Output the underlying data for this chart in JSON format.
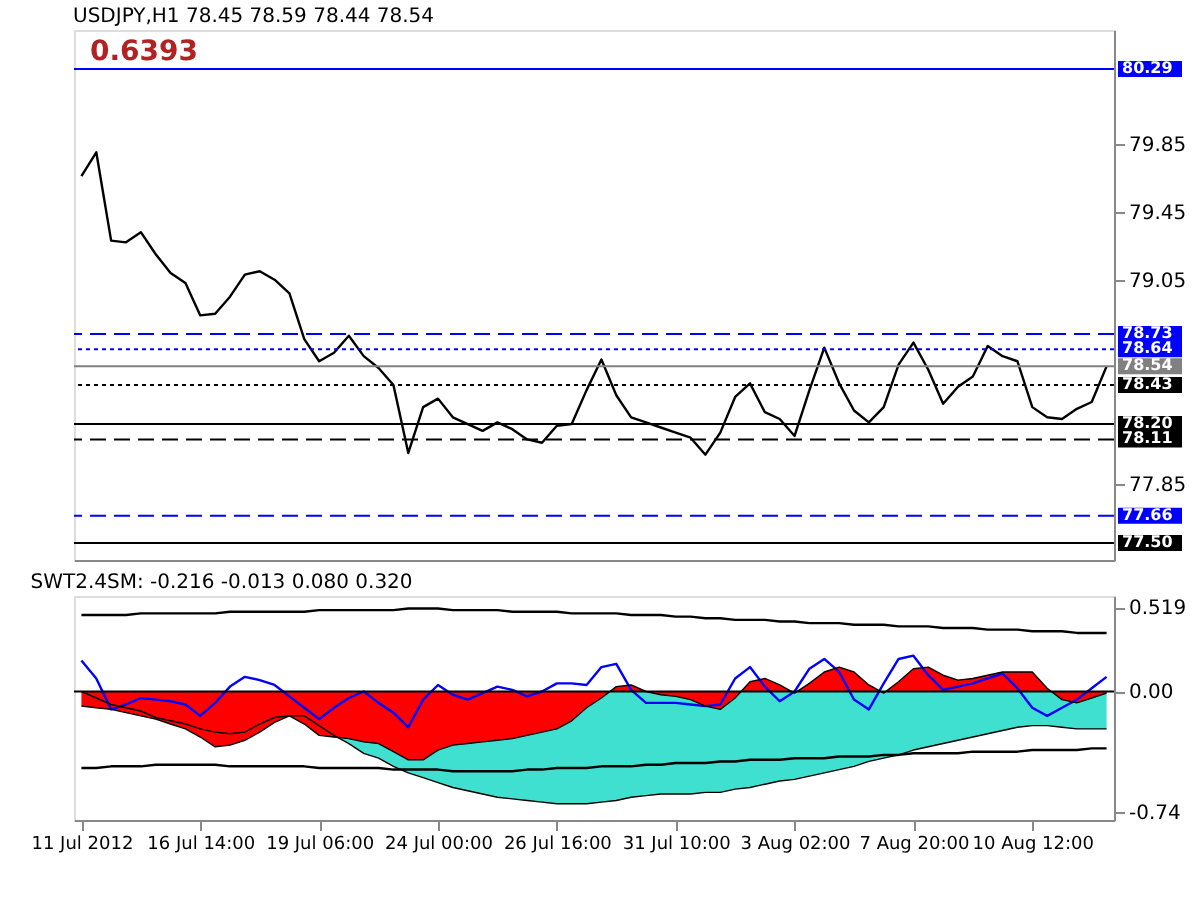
{
  "chart_data": [
    {
      "type": "line",
      "title": "USDJPY,H1  78.45 78.59 78.44 78.54",
      "annotations": [
        "0.6393"
      ],
      "categories": [
        null,
        null,
        null,
        null,
        null,
        null,
        null,
        null,
        null,
        null,
        null,
        null,
        null,
        null,
        null,
        null,
        null,
        null,
        null,
        null,
        null,
        null,
        null,
        null,
        null,
        null,
        null,
        null,
        null,
        null,
        null,
        null,
        null,
        null,
        null,
        null,
        null,
        null,
        null,
        null,
        null,
        null,
        null,
        null,
        null,
        null,
        null,
        null,
        null,
        null,
        null,
        null,
        null,
        null,
        null,
        null,
        null,
        null,
        null,
        null,
        null,
        null,
        null,
        null,
        null,
        null,
        null,
        null,
        null,
        null
      ],
      "series": [
        {
          "color": "#000000",
          "values": [
            79.66,
            79.8,
            79.28,
            79.27,
            79.33,
            79.2,
            79.09,
            79.03,
            78.84,
            78.85,
            78.95,
            79.08,
            79.1,
            79.05,
            78.97,
            78.7,
            78.57,
            78.62,
            78.72,
            78.6,
            78.53,
            78.43,
            78.03,
            78.3,
            78.35,
            78.24,
            78.2,
            78.16,
            78.21,
            78.17,
            78.11,
            78.09,
            78.19,
            78.2,
            78.4,
            78.58,
            78.37,
            78.24,
            78.21,
            78.18,
            78.15,
            78.12,
            78.02,
            78.15,
            78.36,
            78.44,
            78.27,
            78.23,
            78.13,
            78.4,
            78.65,
            78.44,
            78.28,
            78.21,
            78.3,
            78.55,
            78.68,
            78.52,
            78.32,
            78.42,
            78.48,
            78.66,
            78.6,
            78.57,
            78.3,
            78.24,
            78.23,
            78.29,
            78.33,
            78.54
          ]
        }
      ],
      "ref_lines": [
        {
          "axis": "y",
          "value": 80.29,
          "label": "80.29",
          "color": "#0000ff",
          "line_style": "solid"
        },
        {
          "axis": "y",
          "value": 78.73,
          "label": "78.73",
          "color": "#0000ff",
          "line_style": "dashed"
        },
        {
          "axis": "y",
          "value": 78.64,
          "label": "78.64",
          "color": "#0000ff",
          "line_style": "dotted"
        },
        {
          "axis": "y",
          "value": 78.54,
          "label": "78.54",
          "color": "#808080",
          "line_style": "solid"
        },
        {
          "axis": "y",
          "value": 78.43,
          "label": "78.43",
          "color": "#000000",
          "line_style": "dotted"
        },
        {
          "axis": "y",
          "value": 78.2,
          "label": "78.20",
          "color": "#000000",
          "line_style": "solid"
        },
        {
          "axis": "y",
          "value": 78.11,
          "label": "78.11",
          "color": "#000000",
          "line_style": "dashed"
        },
        {
          "axis": "y",
          "value": 77.66,
          "label": "77.66",
          "color": "#0000ff",
          "line_style": "dashed"
        },
        {
          "axis": "y",
          "value": 77.5,
          "label": "77.50",
          "color": "#000000",
          "line_style": "solid"
        }
      ],
      "ylim": [
        77.4,
        80.52
      ],
      "yticks": [
        77.85,
        79.05,
        79.45,
        79.85
      ],
      "tick_labels": "y"
    },
    {
      "type": "area",
      "title": "SWT2.4SM:  -0.216 -0.013 0.080 0.320",
      "categories": [
        "11 Jul 2012",
        null,
        null,
        null,
        null,
        null,
        null,
        null,
        "16 Jul 14:00",
        null,
        null,
        null,
        null,
        null,
        null,
        null,
        "19 Jul 06:00",
        null,
        null,
        null,
        null,
        null,
        null,
        null,
        "24 Jul 00:00",
        null,
        null,
        null,
        null,
        null,
        null,
        null,
        "26 Jul 16:00",
        null,
        null,
        null,
        null,
        null,
        null,
        null,
        "31 Jul 10:00",
        null,
        null,
        null,
        null,
        null,
        null,
        null,
        "3 Aug 02:00",
        null,
        null,
        null,
        null,
        null,
        null,
        null,
        "7 Aug 20:00",
        null,
        null,
        null,
        null,
        null,
        null,
        null,
        "10 Aug 12:00",
        null,
        null,
        null,
        null,
        null
      ],
      "series": [
        {
          "type": "area",
          "color": "#40e0d0",
          "values": [
            0,
            -0.04,
            -0.08,
            -0.1,
            -0.12,
            -0.16,
            -0.18,
            -0.2,
            -0.23,
            -0.25,
            -0.26,
            -0.25,
            -0.2,
            -0.16,
            -0.15,
            -0.15,
            -0.21,
            -0.27,
            -0.32,
            -0.38,
            -0.41,
            -0.46,
            -0.5,
            -0.53,
            -0.56,
            -0.59,
            -0.61,
            -0.63,
            -0.65,
            -0.66,
            -0.67,
            -0.68,
            -0.69,
            -0.69,
            -0.69,
            -0.68,
            -0.67,
            -0.65,
            -0.64,
            -0.63,
            -0.63,
            -0.63,
            -0.62,
            -0.62,
            -0.6,
            -0.59,
            -0.57,
            -0.55,
            -0.54,
            -0.52,
            -0.5,
            -0.48,
            -0.46,
            -0.43,
            -0.41,
            -0.39,
            -0.36,
            -0.34,
            -0.32,
            -0.3,
            -0.28,
            -0.26,
            -0.24,
            -0.22,
            -0.21,
            -0.21,
            -0.22,
            -0.23,
            -0.23,
            -0.23
          ]
        },
        {
          "type": "area",
          "color": "#ff0000",
          "values": [
            -0.09,
            -0.1,
            -0.11,
            -0.13,
            -0.15,
            -0.17,
            -0.2,
            -0.23,
            -0.28,
            -0.34,
            -0.33,
            -0.3,
            -0.25,
            -0.19,
            -0.15,
            -0.2,
            -0.27,
            -0.28,
            -0.29,
            -0.31,
            -0.32,
            -0.37,
            -0.42,
            -0.42,
            -0.36,
            -0.33,
            -0.32,
            -0.31,
            -0.3,
            -0.29,
            -0.27,
            -0.25,
            -0.23,
            -0.18,
            -0.1,
            -0.04,
            0.03,
            0.04,
            0,
            -0.02,
            -0.03,
            -0.05,
            -0.09,
            -0.11,
            -0.04,
            0.06,
            0.08,
            0.04,
            -0.01,
            0.05,
            0.12,
            0.15,
            0.12,
            0.04,
            -0.01,
            0.06,
            0.14,
            0.15,
            0.1,
            0.07,
            0.08,
            0.1,
            0.12,
            0.12,
            0.12,
            0.02,
            -0.05,
            -0.07,
            -0.04,
            -0.01
          ]
        },
        {
          "type": "line",
          "color": "#0000ff",
          "values": [
            0.19,
            0.08,
            -0.11,
            -0.08,
            -0.04,
            -0.05,
            -0.06,
            -0.08,
            -0.15,
            -0.07,
            0.03,
            0.09,
            0.07,
            0.04,
            -0.03,
            -0.1,
            -0.17,
            -0.1,
            -0.04,
            0,
            -0.07,
            -0.13,
            -0.22,
            -0.05,
            0.04,
            -0.02,
            -0.05,
            -0.01,
            0.03,
            0.01,
            -0.03,
            0,
            0.05,
            0.05,
            0.04,
            0.15,
            0.17,
            0.01,
            -0.07,
            -0.07,
            -0.07,
            -0.08,
            -0.09,
            -0.08,
            0.08,
            0.15,
            0.03,
            -0.06,
            0,
            0.14,
            0.2,
            0.12,
            -0.05,
            -0.11,
            0.05,
            0.2,
            0.22,
            0.1,
            0.01,
            0.03,
            0.05,
            0.08,
            0.11,
            0.02,
            -0.1,
            -0.15,
            -0.1,
            -0.05,
            0.02,
            0.09
          ]
        },
        {
          "type": "line",
          "color": "#000000",
          "values": [
            0.47,
            0.47,
            0.47,
            0.47,
            0.48,
            0.48,
            0.48,
            0.48,
            0.48,
            0.48,
            0.49,
            0.49,
            0.49,
            0.49,
            0.49,
            0.49,
            0.5,
            0.5,
            0.5,
            0.5,
            0.5,
            0.5,
            0.51,
            0.51,
            0.51,
            0.5,
            0.5,
            0.5,
            0.5,
            0.49,
            0.49,
            0.49,
            0.49,
            0.48,
            0.48,
            0.48,
            0.48,
            0.47,
            0.47,
            0.47,
            0.46,
            0.46,
            0.45,
            0.45,
            0.44,
            0.44,
            0.44,
            0.43,
            0.43,
            0.42,
            0.42,
            0.42,
            0.41,
            0.41,
            0.41,
            0.4,
            0.4,
            0.4,
            0.39,
            0.39,
            0.39,
            0.38,
            0.38,
            0.38,
            0.37,
            0.37,
            0.37,
            0.36,
            0.36,
            0.36
          ]
        },
        {
          "type": "line",
          "color": "#000000",
          "values": [
            -0.47,
            -0.47,
            -0.46,
            -0.46,
            -0.46,
            -0.45,
            -0.45,
            -0.45,
            -0.45,
            -0.45,
            -0.46,
            -0.46,
            -0.46,
            -0.46,
            -0.46,
            -0.46,
            -0.47,
            -0.47,
            -0.47,
            -0.47,
            -0.47,
            -0.48,
            -0.48,
            -0.48,
            -0.48,
            -0.49,
            -0.49,
            -0.49,
            -0.49,
            -0.49,
            -0.48,
            -0.48,
            -0.47,
            -0.47,
            -0.47,
            -0.46,
            -0.46,
            -0.46,
            -0.45,
            -0.45,
            -0.44,
            -0.44,
            -0.44,
            -0.43,
            -0.43,
            -0.42,
            -0.42,
            -0.42,
            -0.41,
            -0.41,
            -0.41,
            -0.4,
            -0.4,
            -0.4,
            -0.39,
            -0.39,
            -0.38,
            -0.38,
            -0.38,
            -0.38,
            -0.37,
            -0.37,
            -0.37,
            -0.37,
            -0.36,
            -0.36,
            -0.36,
            -0.36,
            -0.35,
            -0.35
          ]
        }
      ],
      "ylim": [
        -0.79,
        0.587
      ],
      "yticks": [
        0.519,
        {
          "value": 0,
          "label": "0.00"
        },
        -0.74
      ],
      "ref_lines": [
        {
          "axis": "y",
          "value": 0,
          "color": "#000000",
          "line_style": "solid"
        }
      ]
    }
  ]
}
